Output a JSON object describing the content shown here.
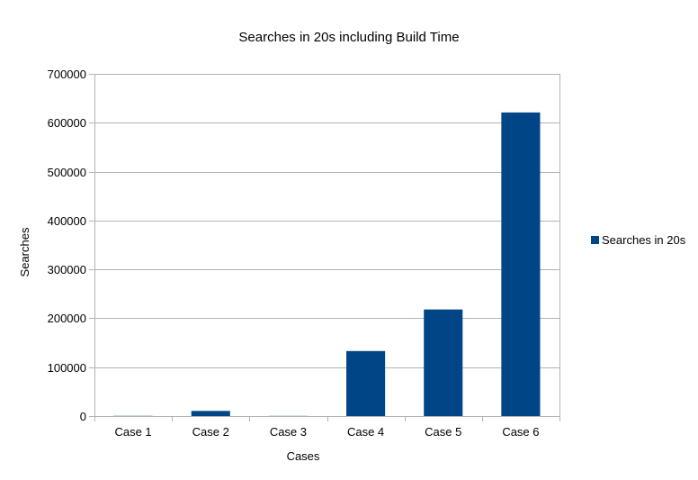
{
  "chart_data": {
    "type": "bar",
    "title": "Searches in 20s including Build Time",
    "xlabel": "Cases",
    "ylabel": "Searches",
    "categories": [
      "Case 1",
      "Case 2",
      "Case 3",
      "Case 4",
      "Case 5",
      "Case 6"
    ],
    "series": [
      {
        "name": "Searches in 20s",
        "color": "#004586",
        "values": [
          400,
          10500,
          300,
          133000,
          218000,
          621000
        ]
      }
    ],
    "ylim": [
      0,
      700000
    ],
    "yticks": [
      "0",
      "100000",
      "200000",
      "300000",
      "400000",
      "500000",
      "600000",
      "700000"
    ],
    "grid": true,
    "legend_position": "right"
  }
}
